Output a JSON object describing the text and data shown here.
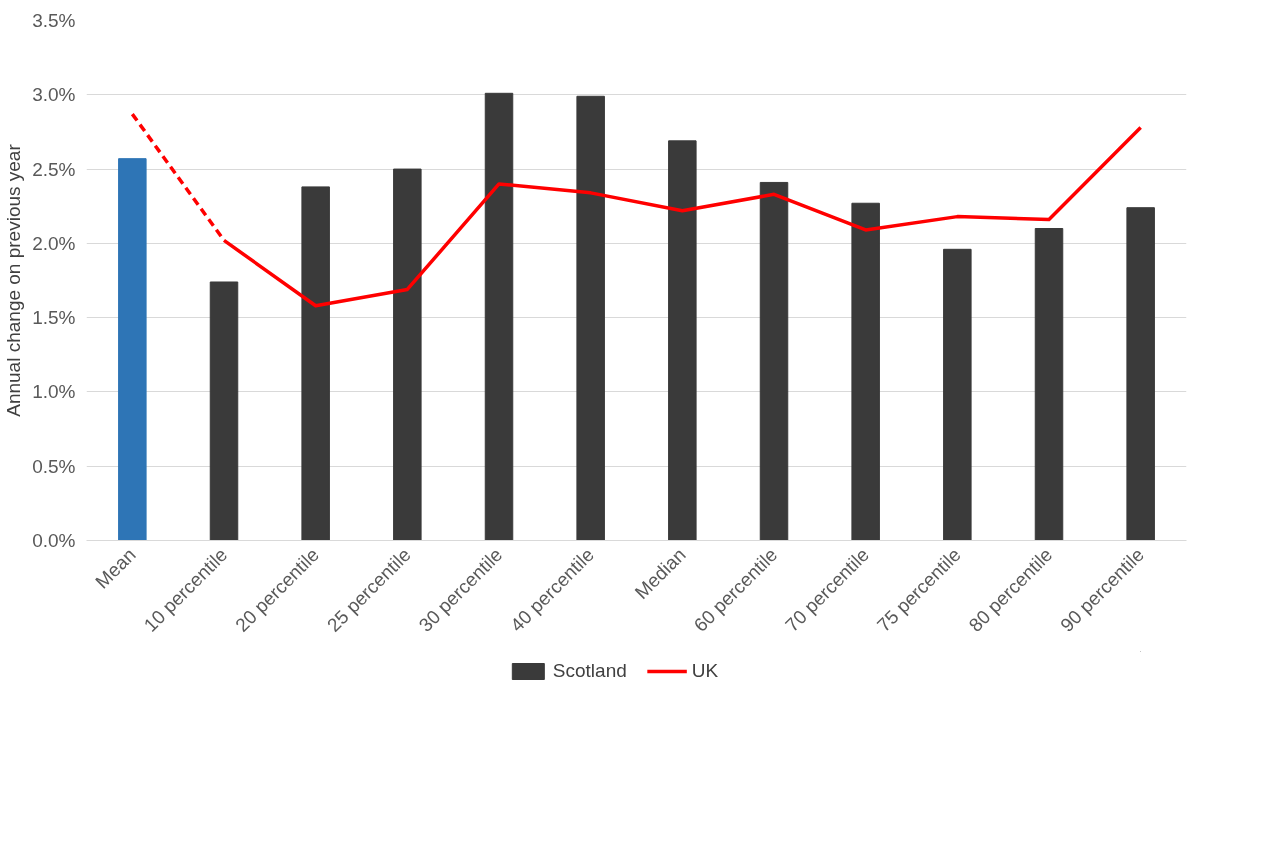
{
  "chart_data": {
    "type": "bar",
    "ylabel": "Annual change on previous year",
    "categories": [
      "Mean",
      "10 percentile",
      "20 percentile",
      "25 percentile",
      "30 percentile",
      "40 percentile",
      "Median",
      "60 percentile",
      "70 percentile",
      "75 percentile",
      "80 percentile",
      "90 percentile"
    ],
    "series": [
      {
        "name": "Scotland",
        "color": "#3a3a3a",
        "colors": [
          "#2e75b6",
          "#3a3a3a",
          "#3a3a3a",
          "#3a3a3a",
          "#3a3a3a",
          "#3a3a3a",
          "#3a3a3a",
          "#3a3a3a",
          "#3a3a3a",
          "#3a3a3a",
          "#3a3a3a",
          "#3a3a3a"
        ],
        "values": [
          2.57,
          1.74,
          2.38,
          2.5,
          3.01,
          2.99,
          2.69,
          2.41,
          2.27,
          1.96,
          2.1,
          2.24
        ]
      },
      {
        "type": "line",
        "color": "#ff0000",
        "line_style": "dashed",
        "values": [
          2.87,
          2.02,
          null,
          null,
          null,
          null,
          null,
          null,
          null,
          null,
          null,
          null
        ]
      },
      {
        "name": "UK",
        "type": "line",
        "color": "#ff0000",
        "line_style": "solid",
        "values": [
          null,
          2.02,
          1.58,
          1.69,
          2.4,
          2.34,
          2.22,
          2.33,
          2.09,
          2.18,
          2.16,
          2.78
        ]
      }
    ],
    "ylim": [
      0,
      3.5
    ],
    "yticks": [
      {
        "value": 0,
        "label": "0.0%"
      },
      {
        "value": 0.5,
        "label": "0.5%"
      },
      {
        "value": 1,
        "label": "1.0%"
      },
      {
        "value": 1.5,
        "label": "1.5%"
      },
      {
        "value": 2,
        "label": "2.0%"
      },
      {
        "value": 2.5,
        "label": "2.5%"
      },
      {
        "value": 3,
        "label": "3.0%"
      },
      {
        "value": 3.5,
        "label": "3.5%"
      }
    ],
    "grid": "y",
    "legend": "bottom"
  }
}
